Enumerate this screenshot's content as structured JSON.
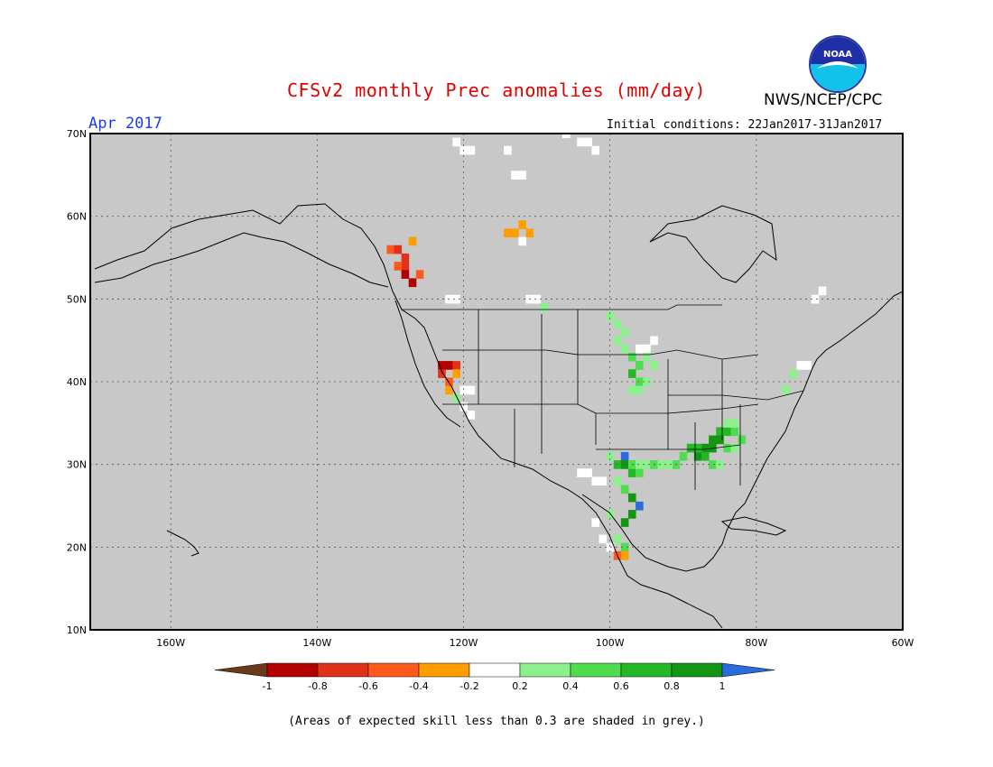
{
  "header": {
    "title": "CFSv2 monthly Prec anomalies (mm/day)",
    "org": "NWS/NCEP/CPC",
    "period": "Apr 2017",
    "initial_conditions": "Initial conditions: 22Jan2017-31Jan2017",
    "logo_text": "NOAA"
  },
  "map": {
    "lat_labels": [
      "70N",
      "60N",
      "50N",
      "40N",
      "30N",
      "20N",
      "10N"
    ],
    "lon_labels": [
      "160W",
      "140W",
      "120W",
      "100W",
      "80W",
      "60W"
    ],
    "lon_range": [
      -171,
      -60
    ],
    "lat_range": [
      10,
      70
    ],
    "background_color": "#c8c8c8",
    "anomaly_cells": [
      {
        "lon": -121,
        "lat": 69,
        "v": 0.1
      },
      {
        "lon": -120,
        "lat": 68,
        "v": 0.0
      },
      {
        "lon": -119,
        "lat": 68,
        "v": 0.0
      },
      {
        "lon": -106,
        "lat": 70,
        "v": 0.0
      },
      {
        "lon": -104,
        "lat": 69,
        "v": 0.0
      },
      {
        "lon": -103,
        "lat": 69,
        "v": 0.0
      },
      {
        "lon": -102,
        "lat": 68,
        "v": 0.0
      },
      {
        "lon": -114,
        "lat": 68,
        "v": 0.0
      },
      {
        "lon": -113,
        "lat": 65,
        "v": 0.0
      },
      {
        "lon": -112,
        "lat": 65,
        "v": 0.0
      },
      {
        "lon": -114,
        "lat": 58,
        "v": -0.3
      },
      {
        "lon": -113,
        "lat": 58,
        "v": -0.3
      },
      {
        "lon": -112,
        "lat": 59,
        "v": -0.3
      },
      {
        "lon": -111,
        "lat": 58,
        "v": -0.3
      },
      {
        "lon": -112,
        "lat": 57,
        "v": 0.0
      },
      {
        "lon": -130,
        "lat": 56,
        "v": -0.5
      },
      {
        "lon": -129,
        "lat": 56,
        "v": -0.6
      },
      {
        "lon": -128,
        "lat": 55,
        "v": -0.6
      },
      {
        "lon": -127,
        "lat": 57,
        "v": -0.3
      },
      {
        "lon": -128,
        "lat": 54,
        "v": -0.7
      },
      {
        "lon": -129,
        "lat": 54,
        "v": -0.5
      },
      {
        "lon": -128,
        "lat": 53,
        "v": -0.9
      },
      {
        "lon": -127,
        "lat": 52,
        "v": -0.9
      },
      {
        "lon": -126,
        "lat": 53,
        "v": -0.5
      },
      {
        "lon": -122,
        "lat": 50,
        "v": 0.0
      },
      {
        "lon": -121,
        "lat": 50,
        "v": 0.0
      },
      {
        "lon": -111,
        "lat": 50,
        "v": 0.0
      },
      {
        "lon": -110,
        "lat": 50,
        "v": 0.0
      },
      {
        "lon": -109,
        "lat": 49,
        "v": 0.3
      },
      {
        "lon": -123,
        "lat": 42,
        "v": -0.9
      },
      {
        "lon": -122,
        "lat": 42,
        "v": -0.9
      },
      {
        "lon": -121,
        "lat": 42,
        "v": -0.6
      },
      {
        "lon": -123,
        "lat": 41,
        "v": -0.7
      },
      {
        "lon": -122,
        "lat": 40,
        "v": -0.5
      },
      {
        "lon": -121,
        "lat": 41,
        "v": -0.3
      },
      {
        "lon": -122,
        "lat": 39,
        "v": -0.3
      },
      {
        "lon": -120,
        "lat": 39,
        "v": 0.0
      },
      {
        "lon": -119,
        "lat": 39,
        "v": 0.0
      },
      {
        "lon": -120,
        "lat": 37,
        "v": 0.0
      },
      {
        "lon": -119,
        "lat": 36,
        "v": 0.0
      },
      {
        "lon": -121,
        "lat": 38,
        "v": 0.3
      },
      {
        "lon": -100,
        "lat": 48,
        "v": 0.3
      },
      {
        "lon": -99,
        "lat": 47,
        "v": 0.3
      },
      {
        "lon": -98,
        "lat": 46,
        "v": 0.3
      },
      {
        "lon": -99,
        "lat": 45,
        "v": 0.3
      },
      {
        "lon": -98,
        "lat": 44,
        "v": 0.3
      },
      {
        "lon": -97,
        "lat": 43,
        "v": 0.5
      },
      {
        "lon": -96,
        "lat": 44,
        "v": 0.0
      },
      {
        "lon": -95,
        "lat": 44,
        "v": 0.0
      },
      {
        "lon": -94,
        "lat": 45,
        "v": 0.0
      },
      {
        "lon": -96,
        "lat": 42,
        "v": 0.5
      },
      {
        "lon": -95,
        "lat": 43,
        "v": 0.3
      },
      {
        "lon": -94,
        "lat": 42,
        "v": 0.3
      },
      {
        "lon": -97,
        "lat": 41,
        "v": 0.7
      },
      {
        "lon": -96,
        "lat": 40,
        "v": 0.5
      },
      {
        "lon": -97,
        "lat": 39,
        "v": 0.3
      },
      {
        "lon": -96,
        "lat": 39,
        "v": 0.3
      },
      {
        "lon": -95,
        "lat": 40,
        "v": 0.3
      },
      {
        "lon": -100,
        "lat": 31,
        "v": 0.3
      },
      {
        "lon": -99,
        "lat": 30,
        "v": 0.7
      },
      {
        "lon": -98,
        "lat": 31,
        "v": 1.2
      },
      {
        "lon": -98,
        "lat": 30,
        "v": 0.9
      },
      {
        "lon": -97,
        "lat": 29,
        "v": 0.7
      },
      {
        "lon": -96,
        "lat": 29,
        "v": 0.5
      },
      {
        "lon": -97,
        "lat": 30,
        "v": 0.5
      },
      {
        "lon": -99,
        "lat": 28,
        "v": 0.3
      },
      {
        "lon": -98,
        "lat": 27,
        "v": 0.5
      },
      {
        "lon": -97,
        "lat": 26,
        "v": 0.9
      },
      {
        "lon": -96,
        "lat": 25,
        "v": 1.2
      },
      {
        "lon": -97,
        "lat": 24,
        "v": 0.9
      },
      {
        "lon": -98,
        "lat": 23,
        "v": 0.9
      },
      {
        "lon": -96,
        "lat": 30,
        "v": 0.3
      },
      {
        "lon": -95,
        "lat": 30,
        "v": 0.3
      },
      {
        "lon": -94,
        "lat": 30,
        "v": 0.5
      },
      {
        "lon": -93,
        "lat": 30,
        "v": 0.3
      },
      {
        "lon": -104,
        "lat": 29,
        "v": 0.0
      },
      {
        "lon": -103,
        "lat": 29,
        "v": 0.0
      },
      {
        "lon": -102,
        "lat": 28,
        "v": 0.0
      },
      {
        "lon": -101,
        "lat": 28,
        "v": 0.0
      },
      {
        "lon": -99,
        "lat": 21,
        "v": 0.3
      },
      {
        "lon": -98,
        "lat": 20,
        "v": 0.5
      },
      {
        "lon": -99,
        "lat": 19,
        "v": -0.4
      },
      {
        "lon": -98,
        "lat": 19,
        "v": -0.3
      },
      {
        "lon": -100,
        "lat": 20,
        "v": 0.0
      },
      {
        "lon": -101,
        "lat": 21,
        "v": 0.0
      },
      {
        "lon": -102,
        "lat": 23,
        "v": 0.0
      },
      {
        "lon": -100,
        "lat": 24,
        "v": 0.3
      },
      {
        "lon": -90,
        "lat": 31,
        "v": 0.5
      },
      {
        "lon": -89,
        "lat": 32,
        "v": 0.7
      },
      {
        "lon": -88,
        "lat": 31,
        "v": 0.9
      },
      {
        "lon": -87,
        "lat": 32,
        "v": 0.9
      },
      {
        "lon": -86,
        "lat": 33,
        "v": 0.9
      },
      {
        "lon": -85,
        "lat": 34,
        "v": 0.7
      },
      {
        "lon": -84,
        "lat": 34,
        "v": 0.7
      },
      {
        "lon": -83,
        "lat": 34,
        "v": 0.5
      },
      {
        "lon": -82,
        "lat": 33,
        "v": 0.5
      },
      {
        "lon": -85,
        "lat": 33,
        "v": 0.9
      },
      {
        "lon": -86,
        "lat": 32,
        "v": 0.9
      },
      {
        "lon": -87,
        "lat": 31,
        "v": 0.7
      },
      {
        "lon": -88,
        "lat": 32,
        "v": 0.7
      },
      {
        "lon": -84,
        "lat": 32,
        "v": 0.5
      },
      {
        "lon": -83,
        "lat": 32,
        "v": 0.3
      },
      {
        "lon": -84,
        "lat": 35,
        "v": 0.3
      },
      {
        "lon": -83,
        "lat": 35,
        "v": 0.3
      },
      {
        "lon": -91,
        "lat": 30,
        "v": 0.5
      },
      {
        "lon": -92,
        "lat": 30,
        "v": 0.3
      },
      {
        "lon": -86,
        "lat": 30,
        "v": 0.5
      },
      {
        "lon": -85,
        "lat": 30,
        "v": 0.3
      },
      {
        "lon": -75,
        "lat": 41,
        "v": 0.3
      },
      {
        "lon": -74,
        "lat": 42,
        "v": 0.0
      },
      {
        "lon": -73,
        "lat": 42,
        "v": 0.0
      },
      {
        "lon": -76,
        "lat": 39,
        "v": 0.3
      },
      {
        "lon": -72,
        "lat": 50,
        "v": 0.0
      },
      {
        "lon": -71,
        "lat": 51,
        "v": 0.0
      }
    ]
  },
  "colorbar": {
    "labels": [
      "-1",
      "-0.8",
      "-0.6",
      "-0.4",
      "-0.2",
      "0.2",
      "0.4",
      "0.6",
      "0.8",
      "1"
    ],
    "colors": [
      "#6b3a1e",
      "#b40000",
      "#e0321b",
      "#ff5a1e",
      "#ff9e00",
      "#ffffff",
      "#8cf08c",
      "#4fdc4f",
      "#25b825",
      "#149614",
      "#2b6bdc"
    ]
  },
  "footnote": "(Areas of expected skill less than 0.3 are shaded in grey.)"
}
